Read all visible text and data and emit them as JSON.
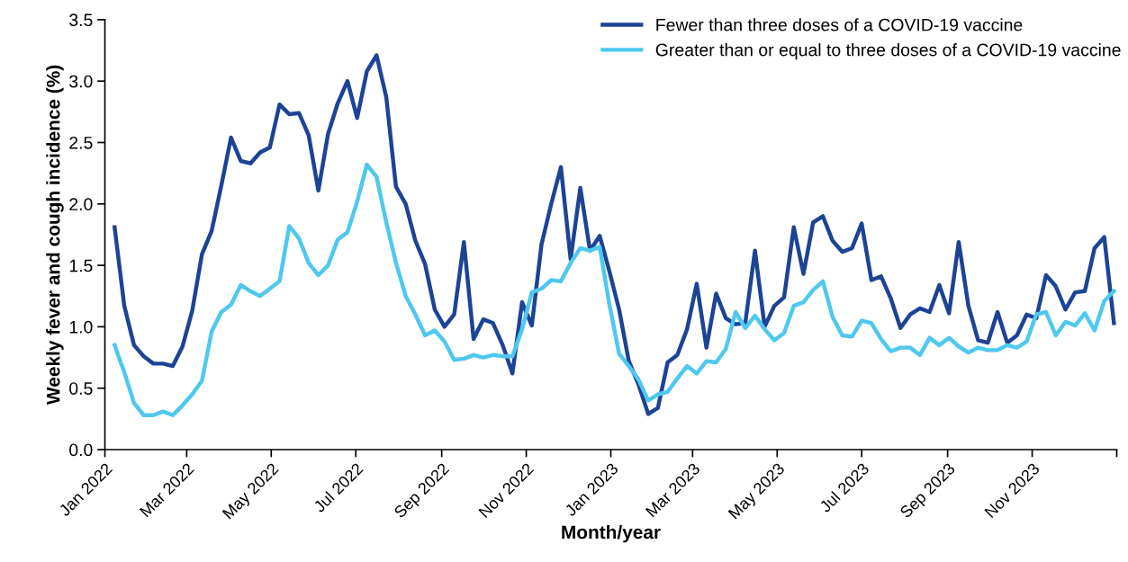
{
  "chart_data": {
    "type": "line",
    "xlabel": "Month/year",
    "ylabel": "Weekly fever and cough incidence (%)",
    "x": [
      "2022-01-08",
      "2022-01-15",
      "2022-01-22",
      "2022-01-29",
      "2022-02-05",
      "2022-02-12",
      "2022-02-19",
      "2022-02-26",
      "2022-03-05",
      "2022-03-12",
      "2022-03-19",
      "2022-03-26",
      "2022-04-02",
      "2022-04-09",
      "2022-04-16",
      "2022-04-23",
      "2022-04-30",
      "2022-05-07",
      "2022-05-14",
      "2022-05-21",
      "2022-05-28",
      "2022-06-04",
      "2022-06-11",
      "2022-06-18",
      "2022-06-25",
      "2022-07-02",
      "2022-07-09",
      "2022-07-16",
      "2022-07-23",
      "2022-07-30",
      "2022-08-06",
      "2022-08-13",
      "2022-08-20",
      "2022-08-27",
      "2022-09-03",
      "2022-09-10",
      "2022-09-17",
      "2022-09-24",
      "2022-10-01",
      "2022-10-08",
      "2022-10-15",
      "2022-10-22",
      "2022-10-29",
      "2022-11-05",
      "2022-11-12",
      "2022-11-19",
      "2022-11-26",
      "2022-12-03",
      "2022-12-10",
      "2022-12-17",
      "2022-12-24",
      "2022-12-31",
      "2023-01-07",
      "2023-01-14",
      "2023-01-21",
      "2023-01-28",
      "2023-02-04",
      "2023-02-11",
      "2023-02-18",
      "2023-02-25",
      "2023-03-04",
      "2023-03-11",
      "2023-03-18",
      "2023-03-25",
      "2023-04-01",
      "2023-04-08",
      "2023-04-15",
      "2023-04-22",
      "2023-04-29",
      "2023-05-06",
      "2023-05-13",
      "2023-05-20",
      "2023-05-27",
      "2023-06-03",
      "2023-06-10",
      "2023-06-17",
      "2023-06-24",
      "2023-07-01",
      "2023-07-08",
      "2023-07-15",
      "2023-07-22",
      "2023-07-29",
      "2023-08-05",
      "2023-08-12",
      "2023-08-19",
      "2023-08-26",
      "2023-09-02",
      "2023-09-09",
      "2023-09-16",
      "2023-09-23",
      "2023-09-30",
      "2023-10-07",
      "2023-10-14",
      "2023-10-21",
      "2023-10-28",
      "2023-11-04",
      "2023-11-11",
      "2023-11-18",
      "2023-11-25",
      "2023-12-02",
      "2023-12-09",
      "2023-12-16",
      "2023-12-23",
      "2023-12-30"
    ],
    "series": [
      {
        "name": "Fewer than three doses of a COVID-19 vaccine",
        "color": "#1c4396",
        "values": [
          1.81,
          1.17,
          0.85,
          0.76,
          0.7,
          0.7,
          0.68,
          0.84,
          1.13,
          1.59,
          1.78,
          2.15,
          2.54,
          2.35,
          2.33,
          2.42,
          2.46,
          2.81,
          2.73,
          2.74,
          2.56,
          2.11,
          2.57,
          2.82,
          3.0,
          2.7,
          3.08,
          3.21,
          2.87,
          2.14,
          2.0,
          1.7,
          1.51,
          1.14,
          1.0,
          1.1,
          1.69,
          0.9,
          1.06,
          1.03,
          0.85,
          0.62,
          1.2,
          1.01,
          1.67,
          2.0,
          2.3,
          1.55,
          2.13,
          1.62,
          1.74,
          1.45,
          1.14,
          0.72,
          0.53,
          0.29,
          0.34,
          0.71,
          0.77,
          0.98,
          1.35,
          0.83,
          1.27,
          1.07,
          1.02,
          1.03,
          1.62,
          1.0,
          1.17,
          1.24,
          1.81,
          1.43,
          1.85,
          1.9,
          1.7,
          1.61,
          1.64,
          1.84,
          1.38,
          1.41,
          1.23,
          0.99,
          1.1,
          1.15,
          1.12,
          1.34,
          1.11,
          1.69,
          1.17,
          0.89,
          0.87,
          1.12,
          0.87,
          0.93,
          1.1,
          1.07,
          1.42,
          1.33,
          1.14,
          1.28,
          1.29,
          1.64,
          1.73,
          1.03
        ]
      },
      {
        "name": "Greater than or equal to three doses of a COVID-19 vaccine",
        "color": "#4fc8f0",
        "values": [
          0.85,
          0.63,
          0.38,
          0.28,
          0.28,
          0.31,
          0.28,
          0.36,
          0.45,
          0.56,
          0.96,
          1.12,
          1.18,
          1.34,
          1.29,
          1.25,
          1.31,
          1.37,
          1.82,
          1.72,
          1.52,
          1.42,
          1.5,
          1.71,
          1.77,
          2.02,
          2.32,
          2.22,
          1.85,
          1.52,
          1.25,
          1.1,
          0.93,
          0.97,
          0.88,
          0.73,
          0.74,
          0.77,
          0.75,
          0.77,
          0.76,
          0.76,
          0.98,
          1.28,
          1.31,
          1.38,
          1.37,
          1.52,
          1.64,
          1.62,
          1.65,
          1.18,
          0.78,
          0.68,
          0.57,
          0.4,
          0.45,
          0.47,
          0.58,
          0.68,
          0.62,
          0.72,
          0.71,
          0.82,
          1.12,
          0.99,
          1.09,
          0.98,
          0.89,
          0.95,
          1.17,
          1.2,
          1.3,
          1.37,
          1.08,
          0.93,
          0.92,
          1.05,
          1.03,
          0.9,
          0.8,
          0.83,
          0.83,
          0.77,
          0.91,
          0.85,
          0.91,
          0.84,
          0.79,
          0.83,
          0.81,
          0.81,
          0.85,
          0.83,
          0.88,
          1.1,
          1.12,
          0.93,
          1.04,
          1.01,
          1.11,
          0.97,
          1.21,
          1.29
        ]
      }
    ],
    "xlim": [
      "2022-01-01",
      "2024-01-01"
    ],
    "xticks": [
      {
        "value": "2022-01-01",
        "label": "Jan 2022"
      },
      {
        "value": "2022-03-01",
        "label": "Mar 2022"
      },
      {
        "value": "2022-05-01",
        "label": "May 2022"
      },
      {
        "value": "2022-07-01",
        "label": "Jul 2022"
      },
      {
        "value": "2022-09-01",
        "label": "Sep 2022"
      },
      {
        "value": "2022-11-01",
        "label": "Nov 2022"
      },
      {
        "value": "2023-01-01",
        "label": "Jan 2023"
      },
      {
        "value": "2023-03-01",
        "label": "Mar 2023"
      },
      {
        "value": "2023-05-01",
        "label": "May 2023"
      },
      {
        "value": "2023-07-01",
        "label": "Jul 2023"
      },
      {
        "value": "2023-09-01",
        "label": "Sep 2023"
      },
      {
        "value": "2023-11-01",
        "label": "Nov 2023"
      },
      {
        "value": "2024-01-01",
        "label": null
      }
    ],
    "ylim": [
      0,
      3.5
    ],
    "yticks": [
      {
        "value": 0,
        "label": "0.0"
      },
      {
        "value": 0.5,
        "label": "0.5"
      },
      {
        "value": 1,
        "label": "1.0"
      },
      {
        "value": 1.5,
        "label": "1.5"
      },
      {
        "value": 2,
        "label": "2.0"
      },
      {
        "value": 2.5,
        "label": "2.5"
      },
      {
        "value": 3,
        "label": "3.0"
      },
      {
        "value": 3.5,
        "label": "3.5"
      }
    ],
    "grid": false,
    "legend": "top right",
    "marker": "none",
    "line_style": "solid"
  }
}
